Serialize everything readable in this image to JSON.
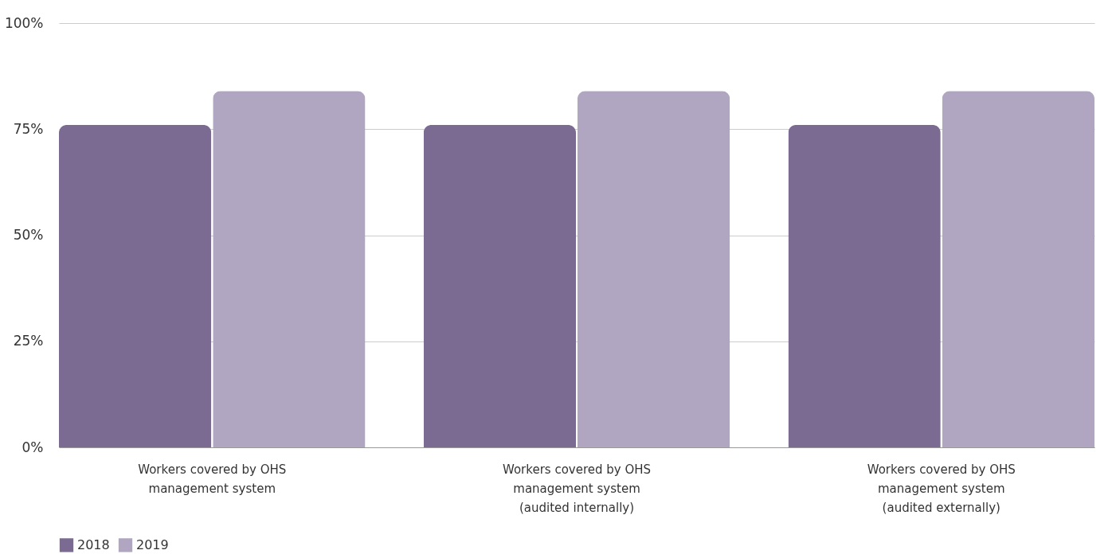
{
  "chart_data": {
    "type": "bar",
    "categories": [
      "Workers covered by OHS management system",
      "Workers covered by OHS management system (audited internally)",
      "Workers covered by OHS management system (audited externally)"
    ],
    "series": [
      {
        "name": "2018",
        "color": "#7b6a91",
        "values": [
          76,
          76,
          76
        ]
      },
      {
        "name": "2019",
        "color": "#b0a6c2",
        "values": [
          84,
          84,
          84
        ]
      }
    ],
    "ylim": [
      0,
      100
    ],
    "yticks": [
      {
        "value": 0,
        "label": "0%"
      },
      {
        "value": 25,
        "label": "25%"
      },
      {
        "value": 50,
        "label": "50%"
      },
      {
        "value": 75,
        "label": "75%"
      },
      {
        "value": 100,
        "label": "100%"
      }
    ],
    "grid": "y",
    "legend": "bottom left"
  }
}
